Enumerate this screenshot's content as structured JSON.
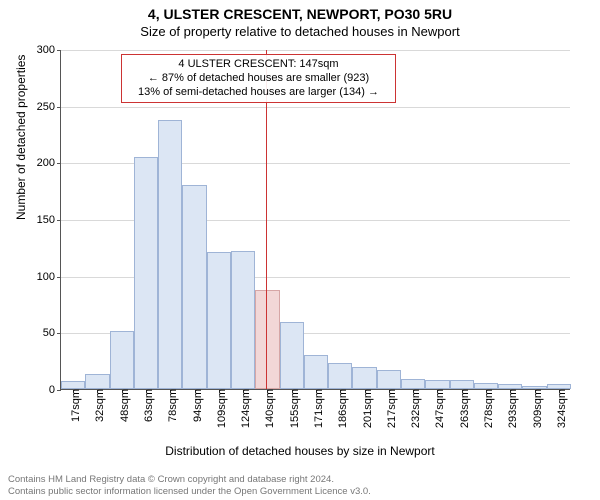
{
  "title_main": "4, ULSTER CRESCENT, NEWPORT, PO30 5RU",
  "title_sub": "Size of property relative to detached houses in Newport",
  "ylabel": "Number of detached properties",
  "xlabel": "Distribution of detached houses by size in Newport",
  "chart": {
    "type": "histogram",
    "background_color": "#ffffff",
    "grid_color": "#d9d9d9",
    "axis_color": "#555555",
    "bar_fill": "#dce6f4",
    "bar_border": "#9fb4d6",
    "marker_color": "#cc3333",
    "annotation_border": "#cc3333",
    "ylim": [
      0,
      300
    ],
    "yticks": [
      0,
      50,
      100,
      150,
      200,
      250,
      300
    ],
    "bar_width_ratio": 1.0,
    "x_labels": [
      "17sqm",
      "32sqm",
      "48sqm",
      "63sqm",
      "78sqm",
      "94sqm",
      "109sqm",
      "124sqm",
      "140sqm",
      "155sqm",
      "171sqm",
      "186sqm",
      "201sqm",
      "217sqm",
      "232sqm",
      "247sqm",
      "263sqm",
      "278sqm",
      "293sqm",
      "309sqm",
      "324sqm"
    ],
    "values": [
      7,
      13,
      51,
      205,
      237,
      180,
      121,
      122,
      87,
      59,
      30,
      23,
      19,
      17,
      9,
      8,
      8,
      5,
      4,
      3,
      4
    ],
    "marker_x_index": 8.45,
    "marker_value_label": "147sqm",
    "highlight_start_index": 8,
    "highlight_end_index": 9,
    "highlight_fill": "#f2d7d7",
    "highlight_border": "#d6a6a6"
  },
  "annotation": {
    "line1": "4 ULSTER CRESCENT: 147sqm",
    "line2": "← 87% of detached houses are smaller (923)",
    "line3": "13% of semi-detached houses are larger (134) →"
  },
  "footer": {
    "line1": "Contains HM Land Registry data © Crown copyright and database right 2024.",
    "line2": "Contains public sector information licensed under the Open Government Licence v3.0."
  }
}
